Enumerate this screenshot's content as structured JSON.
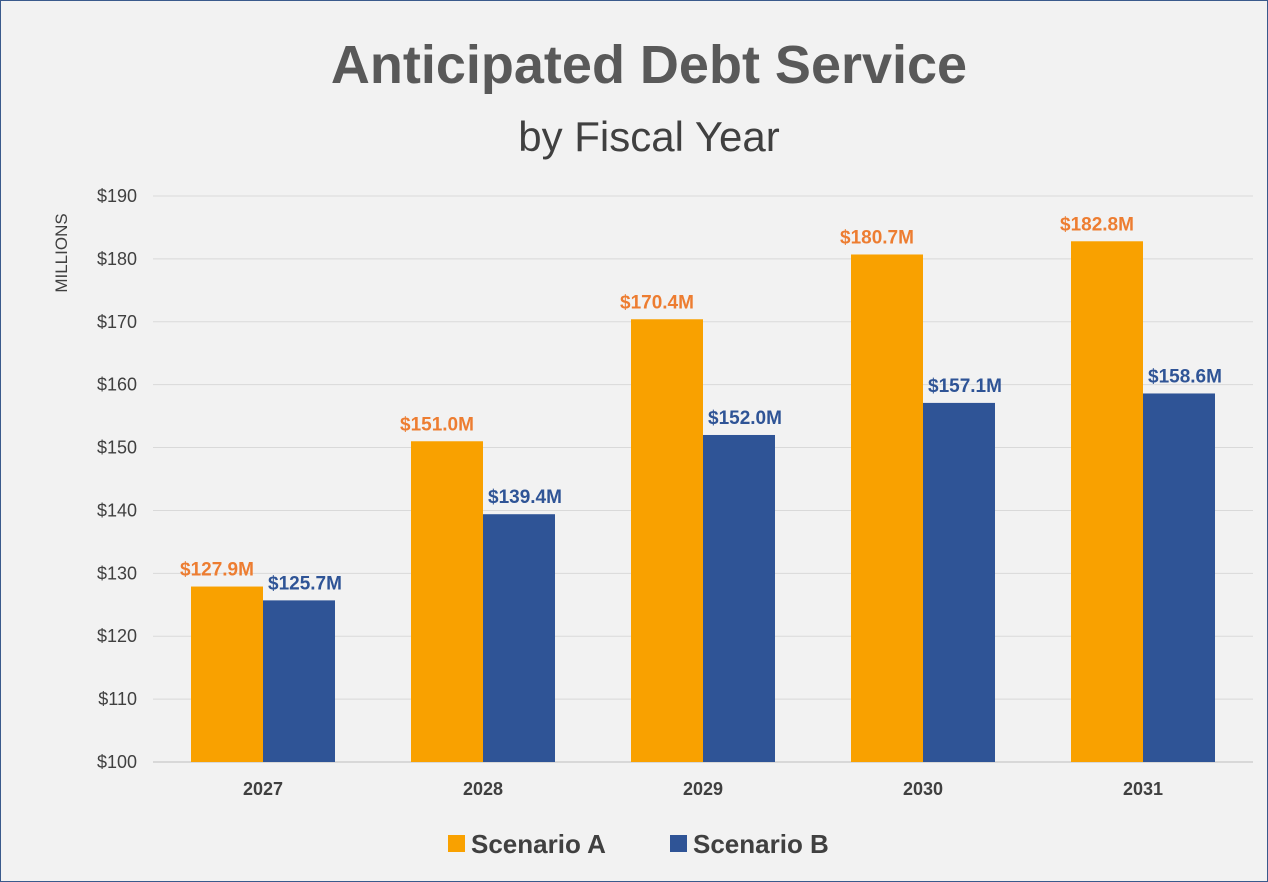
{
  "chart_data": {
    "type": "bar",
    "title": "Anticipated Debt Service",
    "subtitle": "by Fiscal Year",
    "ylabel": "MILLIONS",
    "xlabel": "",
    "categories": [
      "2027",
      "2028",
      "2029",
      "2030",
      "2031"
    ],
    "series": [
      {
        "name": "Scenario A",
        "color": "#f9a100",
        "label_color": "#ed7d31",
        "values": [
          127.9,
          151.0,
          170.4,
          180.7,
          182.8
        ],
        "labels": [
          "$127.9M",
          "$151.0M",
          "$170.4M",
          "$180.7M",
          "$182.8M"
        ]
      },
      {
        "name": "Scenario B",
        "color": "#2f5496",
        "label_color": "#2f5496",
        "values": [
          125.7,
          139.4,
          152.0,
          157.1,
          158.6
        ],
        "labels": [
          "$125.7M",
          "$139.4M",
          "$152.0M",
          "$157.1M",
          "$158.6M"
        ]
      }
    ],
    "ylim": [
      100,
      190
    ],
    "yticks": [
      100,
      110,
      120,
      130,
      140,
      150,
      160,
      170,
      180,
      190
    ],
    "ytick_labels": [
      "$100",
      "$110",
      "$120",
      "$130",
      "$140",
      "$150",
      "$160",
      "$170",
      "$180",
      "$190"
    ],
    "grid": true,
    "legend_position": "bottom"
  }
}
